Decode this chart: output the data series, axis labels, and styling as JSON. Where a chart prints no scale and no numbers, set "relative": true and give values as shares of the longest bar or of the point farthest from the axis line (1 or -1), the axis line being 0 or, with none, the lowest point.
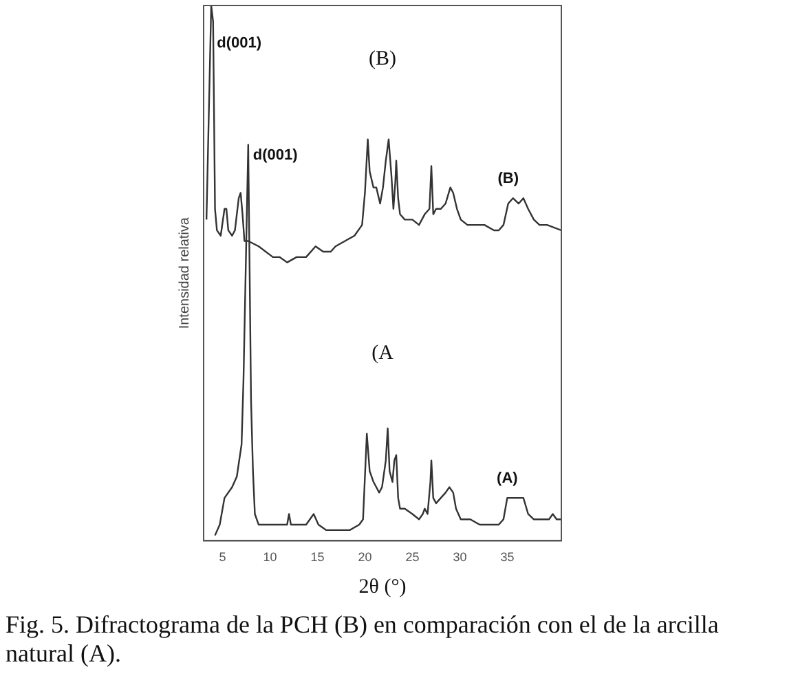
{
  "chart_data": {
    "type": "line",
    "relative": true,
    "xlabel": "2θ (°)",
    "ylabel": "Intensidad relativa",
    "xlim": [
      3,
      40.7
    ],
    "xticks": [
      5,
      10,
      15,
      20,
      25,
      30,
      35
    ],
    "grid": false,
    "legend": false,
    "marker": "none",
    "line_style": "solid",
    "series": [
      {
        "name": "(B)",
        "color": "#333333",
        "x": [
          3.3,
          3.8,
          4.0,
          4.2,
          4.4,
          4.8,
          5.2,
          5.4,
          5.6,
          6.0,
          6.3,
          6.7,
          6.9,
          7.1,
          7.3,
          7.7,
          8.8,
          10.3,
          11.0,
          11.8,
          12.8,
          13.8,
          14.8,
          15.6,
          16.4,
          16.9,
          17.9,
          18.9,
          19.7,
          20.0,
          20.3,
          20.5,
          20.9,
          21.2,
          21.6,
          21.9,
          22.2,
          22.5,
          22.8,
          23.0,
          23.2,
          23.3,
          23.5,
          23.7,
          24.2,
          25.0,
          25.7,
          26.3,
          26.8,
          27.0,
          27.2,
          27.5,
          28.0,
          28.5,
          29.0,
          29.3,
          29.7,
          30.1,
          30.8,
          31.8,
          32.6,
          33.6,
          34.1,
          34.6,
          35.1,
          35.6,
          36.2,
          36.7,
          37.2,
          37.8,
          38.4,
          39.2,
          40.7
        ],
        "values": [
          0.6,
          1.0,
          0.97,
          0.62,
          0.58,
          0.57,
          0.62,
          0.62,
          0.58,
          0.57,
          0.58,
          0.64,
          0.65,
          0.61,
          0.56,
          0.56,
          0.55,
          0.53,
          0.53,
          0.52,
          0.53,
          0.53,
          0.55,
          0.54,
          0.54,
          0.55,
          0.56,
          0.57,
          0.59,
          0.65,
          0.75,
          0.69,
          0.66,
          0.66,
          0.63,
          0.66,
          0.71,
          0.75,
          0.68,
          0.62,
          0.67,
          0.71,
          0.64,
          0.61,
          0.6,
          0.6,
          0.59,
          0.61,
          0.62,
          0.7,
          0.61,
          0.62,
          0.62,
          0.63,
          0.66,
          0.65,
          0.62,
          0.6,
          0.59,
          0.59,
          0.59,
          0.58,
          0.58,
          0.59,
          0.63,
          0.64,
          0.63,
          0.64,
          0.62,
          0.6,
          0.59,
          0.59,
          0.58
        ]
      },
      {
        "name": "(A)",
        "color": "#333333",
        "x": [
          4.2,
          4.7,
          5.2,
          6.0,
          6.5,
          7.0,
          7.2,
          7.7,
          8.0,
          8.2,
          8.4,
          8.8,
          9.8,
          10.8,
          11.8,
          12.0,
          12.2,
          12.8,
          13.8,
          14.6,
          15.1,
          15.9,
          16.9,
          18.4,
          19.4,
          19.8,
          20.2,
          20.5,
          20.9,
          21.2,
          21.5,
          21.8,
          22.2,
          22.4,
          22.6,
          22.9,
          23.1,
          23.3,
          23.5,
          23.7,
          24.2,
          25.0,
          25.7,
          26.1,
          26.3,
          26.6,
          26.9,
          27.0,
          27.2,
          27.5,
          28.0,
          28.5,
          28.9,
          29.3,
          29.6,
          30.1,
          31.1,
          32.1,
          33.1,
          34.1,
          34.6,
          35.0,
          35.5,
          36.2,
          36.7,
          37.2,
          37.8,
          38.7,
          39.4,
          39.8,
          40.2,
          40.7
        ],
        "values": [
          0.01,
          0.03,
          0.08,
          0.1,
          0.12,
          0.18,
          0.3,
          0.74,
          0.26,
          0.13,
          0.05,
          0.03,
          0.03,
          0.03,
          0.03,
          0.05,
          0.03,
          0.03,
          0.03,
          0.05,
          0.03,
          0.02,
          0.02,
          0.02,
          0.03,
          0.04,
          0.2,
          0.13,
          0.11,
          0.1,
          0.09,
          0.1,
          0.15,
          0.21,
          0.13,
          0.11,
          0.15,
          0.16,
          0.08,
          0.06,
          0.06,
          0.05,
          0.04,
          0.05,
          0.06,
          0.05,
          0.11,
          0.15,
          0.08,
          0.07,
          0.08,
          0.09,
          0.1,
          0.09,
          0.06,
          0.04,
          0.04,
          0.03,
          0.03,
          0.03,
          0.04,
          0.08,
          0.08,
          0.08,
          0.08,
          0.05,
          0.04,
          0.04,
          0.04,
          0.05,
          0.04,
          0.04
        ]
      }
    ],
    "annotations": [
      {
        "text": "d(001)",
        "x": 4.4,
        "y": 0.93
      },
      "(B)",
      {
        "text": "d(001)",
        "x": 8.2,
        "y": 0.72
      },
      "(A",
      "Fig. 5. Difractograma de la PCH (B) en comparación con el de la arcilla natural (A)."
    ]
  }
}
